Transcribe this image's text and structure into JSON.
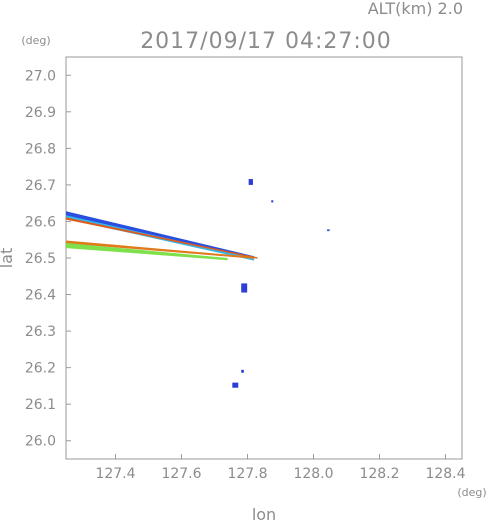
{
  "header": {
    "alt_label": "ALT(km)  2.0",
    "timestamp": "2017/09/17 04:27:00"
  },
  "chart_data": {
    "type": "scatter",
    "title": "2017/09/17 04:27:00",
    "xlabel": "lon",
    "ylabel": "lat",
    "x_unit": "(deg)",
    "y_unit": "(deg)",
    "xlim": [
      127.25,
      128.45
    ],
    "ylim": [
      25.95,
      27.05
    ],
    "xticks": [
      "127.4",
      "127.6",
      "127.8",
      "128.0",
      "128.2",
      "128.4"
    ],
    "xtick_values": [
      127.4,
      127.6,
      127.8,
      128.0,
      128.2,
      128.4
    ],
    "yticks": [
      "26.0",
      "26.1",
      "26.2",
      "26.3",
      "26.4",
      "26.5",
      "26.6",
      "26.7",
      "26.8",
      "26.9",
      "27.0"
    ],
    "ytick_values": [
      26.0,
      26.1,
      26.2,
      26.3,
      26.4,
      26.5,
      26.6,
      26.7,
      26.8,
      26.9,
      27.0
    ],
    "grid": false,
    "features": [
      {
        "kind": "band",
        "color": "#2a4fe0",
        "points": [
          [
            127.25,
            26.628
          ],
          [
            127.82,
            26.505
          ],
          [
            127.82,
            26.495
          ],
          [
            127.25,
            26.612
          ]
        ]
      },
      {
        "kind": "band",
        "color": "#35b6e8",
        "points": [
          [
            127.25,
            26.617
          ],
          [
            127.82,
            26.5
          ],
          [
            127.82,
            26.493
          ],
          [
            127.25,
            26.607
          ]
        ]
      },
      {
        "kind": "band",
        "color": "#e05a1a",
        "points": [
          [
            127.25,
            26.611
          ],
          [
            127.83,
            26.502
          ],
          [
            127.83,
            26.498
          ],
          [
            127.25,
            26.605
          ]
        ]
      },
      {
        "kind": "band",
        "color": "#e07a1a",
        "points": [
          [
            127.25,
            26.548
          ],
          [
            127.82,
            26.503
          ],
          [
            127.82,
            26.498
          ],
          [
            127.25,
            26.54
          ]
        ]
      },
      {
        "kind": "band",
        "color": "#7ee04a",
        "points": [
          [
            127.25,
            26.541
          ],
          [
            127.74,
            26.5
          ],
          [
            127.74,
            26.494
          ],
          [
            127.25,
            26.527
          ]
        ]
      },
      {
        "kind": "point",
        "color": "#2a3ed8",
        "lon": 127.81,
        "lat": 26.708,
        "w": 0.013,
        "h": 0.016
      },
      {
        "kind": "point",
        "color": "#2a3ed8",
        "lon": 127.875,
        "lat": 26.655,
        "w": 0.006,
        "h": 0.006
      },
      {
        "kind": "point",
        "color": "#3a5ae0",
        "lon": 128.045,
        "lat": 26.576,
        "w": 0.008,
        "h": 0.005
      },
      {
        "kind": "point",
        "color": "#2a3ed8",
        "lon": 127.79,
        "lat": 26.418,
        "w": 0.018,
        "h": 0.025
      },
      {
        "kind": "point",
        "color": "#2a3ed8",
        "lon": 127.785,
        "lat": 26.19,
        "w": 0.008,
        "h": 0.008
      },
      {
        "kind": "point",
        "color": "#2a3ed8",
        "lon": 127.763,
        "lat": 26.152,
        "w": 0.018,
        "h": 0.014
      }
    ]
  }
}
